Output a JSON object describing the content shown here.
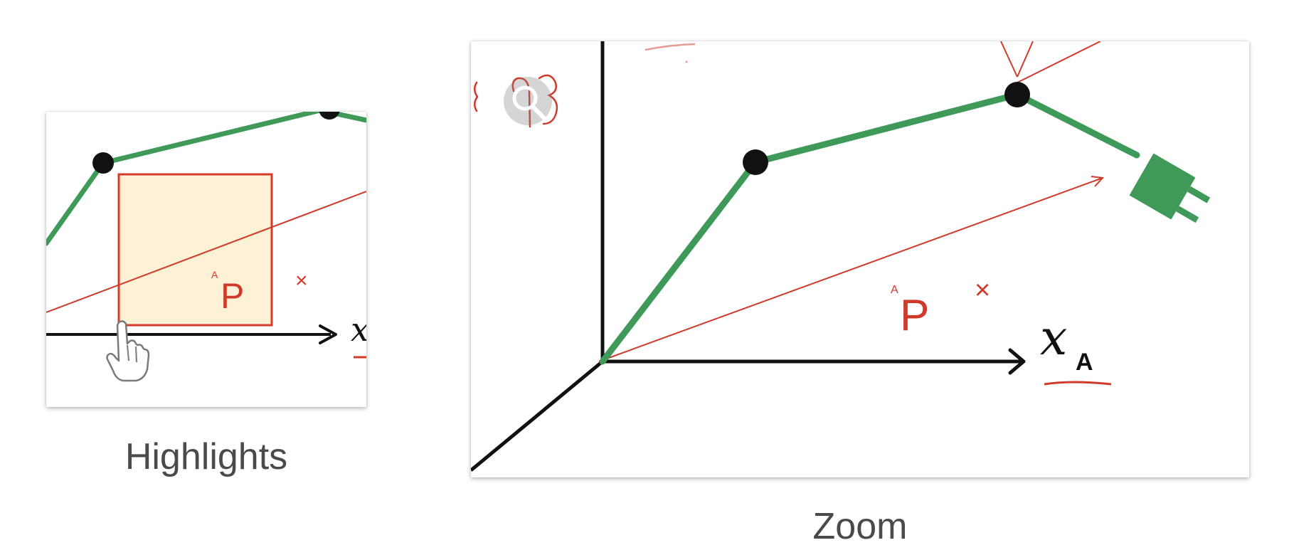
{
  "options": [
    {
      "id": "highlights",
      "label": "Highlights",
      "icons": [
        "hand-pointer-icon"
      ]
    },
    {
      "id": "zoom",
      "label": "Zoom",
      "icons": [
        "magnifier-icon"
      ]
    }
  ],
  "sketch": {
    "axis_label": "x",
    "axis_subscript": "A",
    "point_label": "P",
    "point_superscript": "A",
    "cross_mark": "×"
  },
  "colors": {
    "robot_arm": "#3f9a5a",
    "annotation_red": "#d03a2a",
    "highlight_fill": "#fdf1d6",
    "caption_text": "#4a4a4a"
  }
}
